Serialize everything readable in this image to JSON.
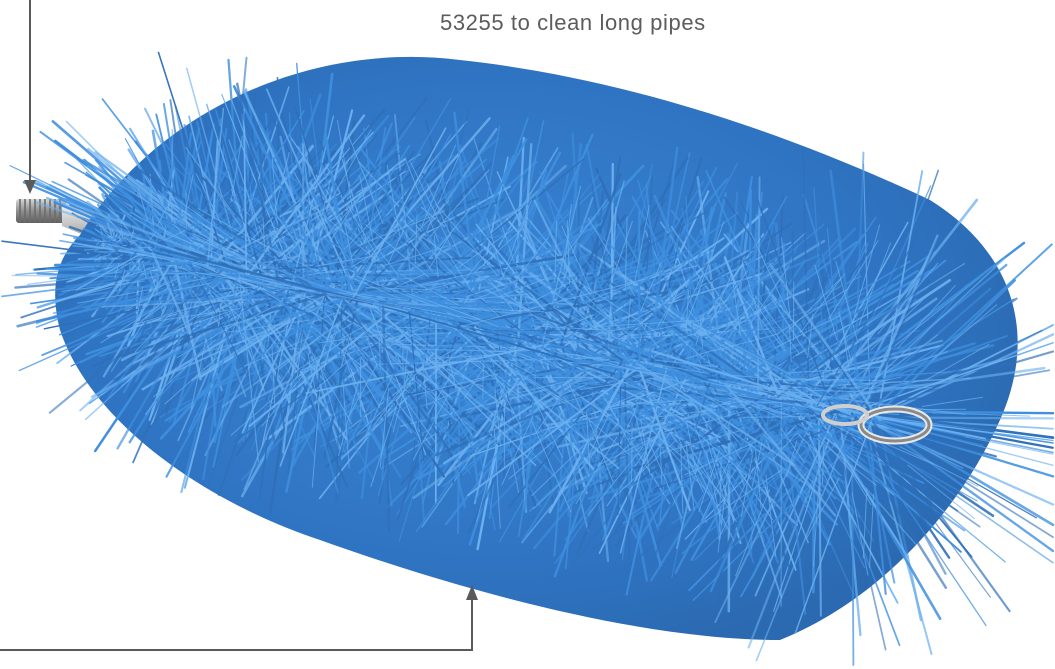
{
  "caption": {
    "text": "53255 to clean long pipes"
  },
  "colors": {
    "bristle_dark": "#2f6fb8",
    "bristle_mid": "#3f8fdf",
    "bristle_light": "#6bb0f0",
    "metal": "#9a9a9a",
    "callout_line": "#5a5a5a",
    "caption_text": "#5c5c5c"
  }
}
